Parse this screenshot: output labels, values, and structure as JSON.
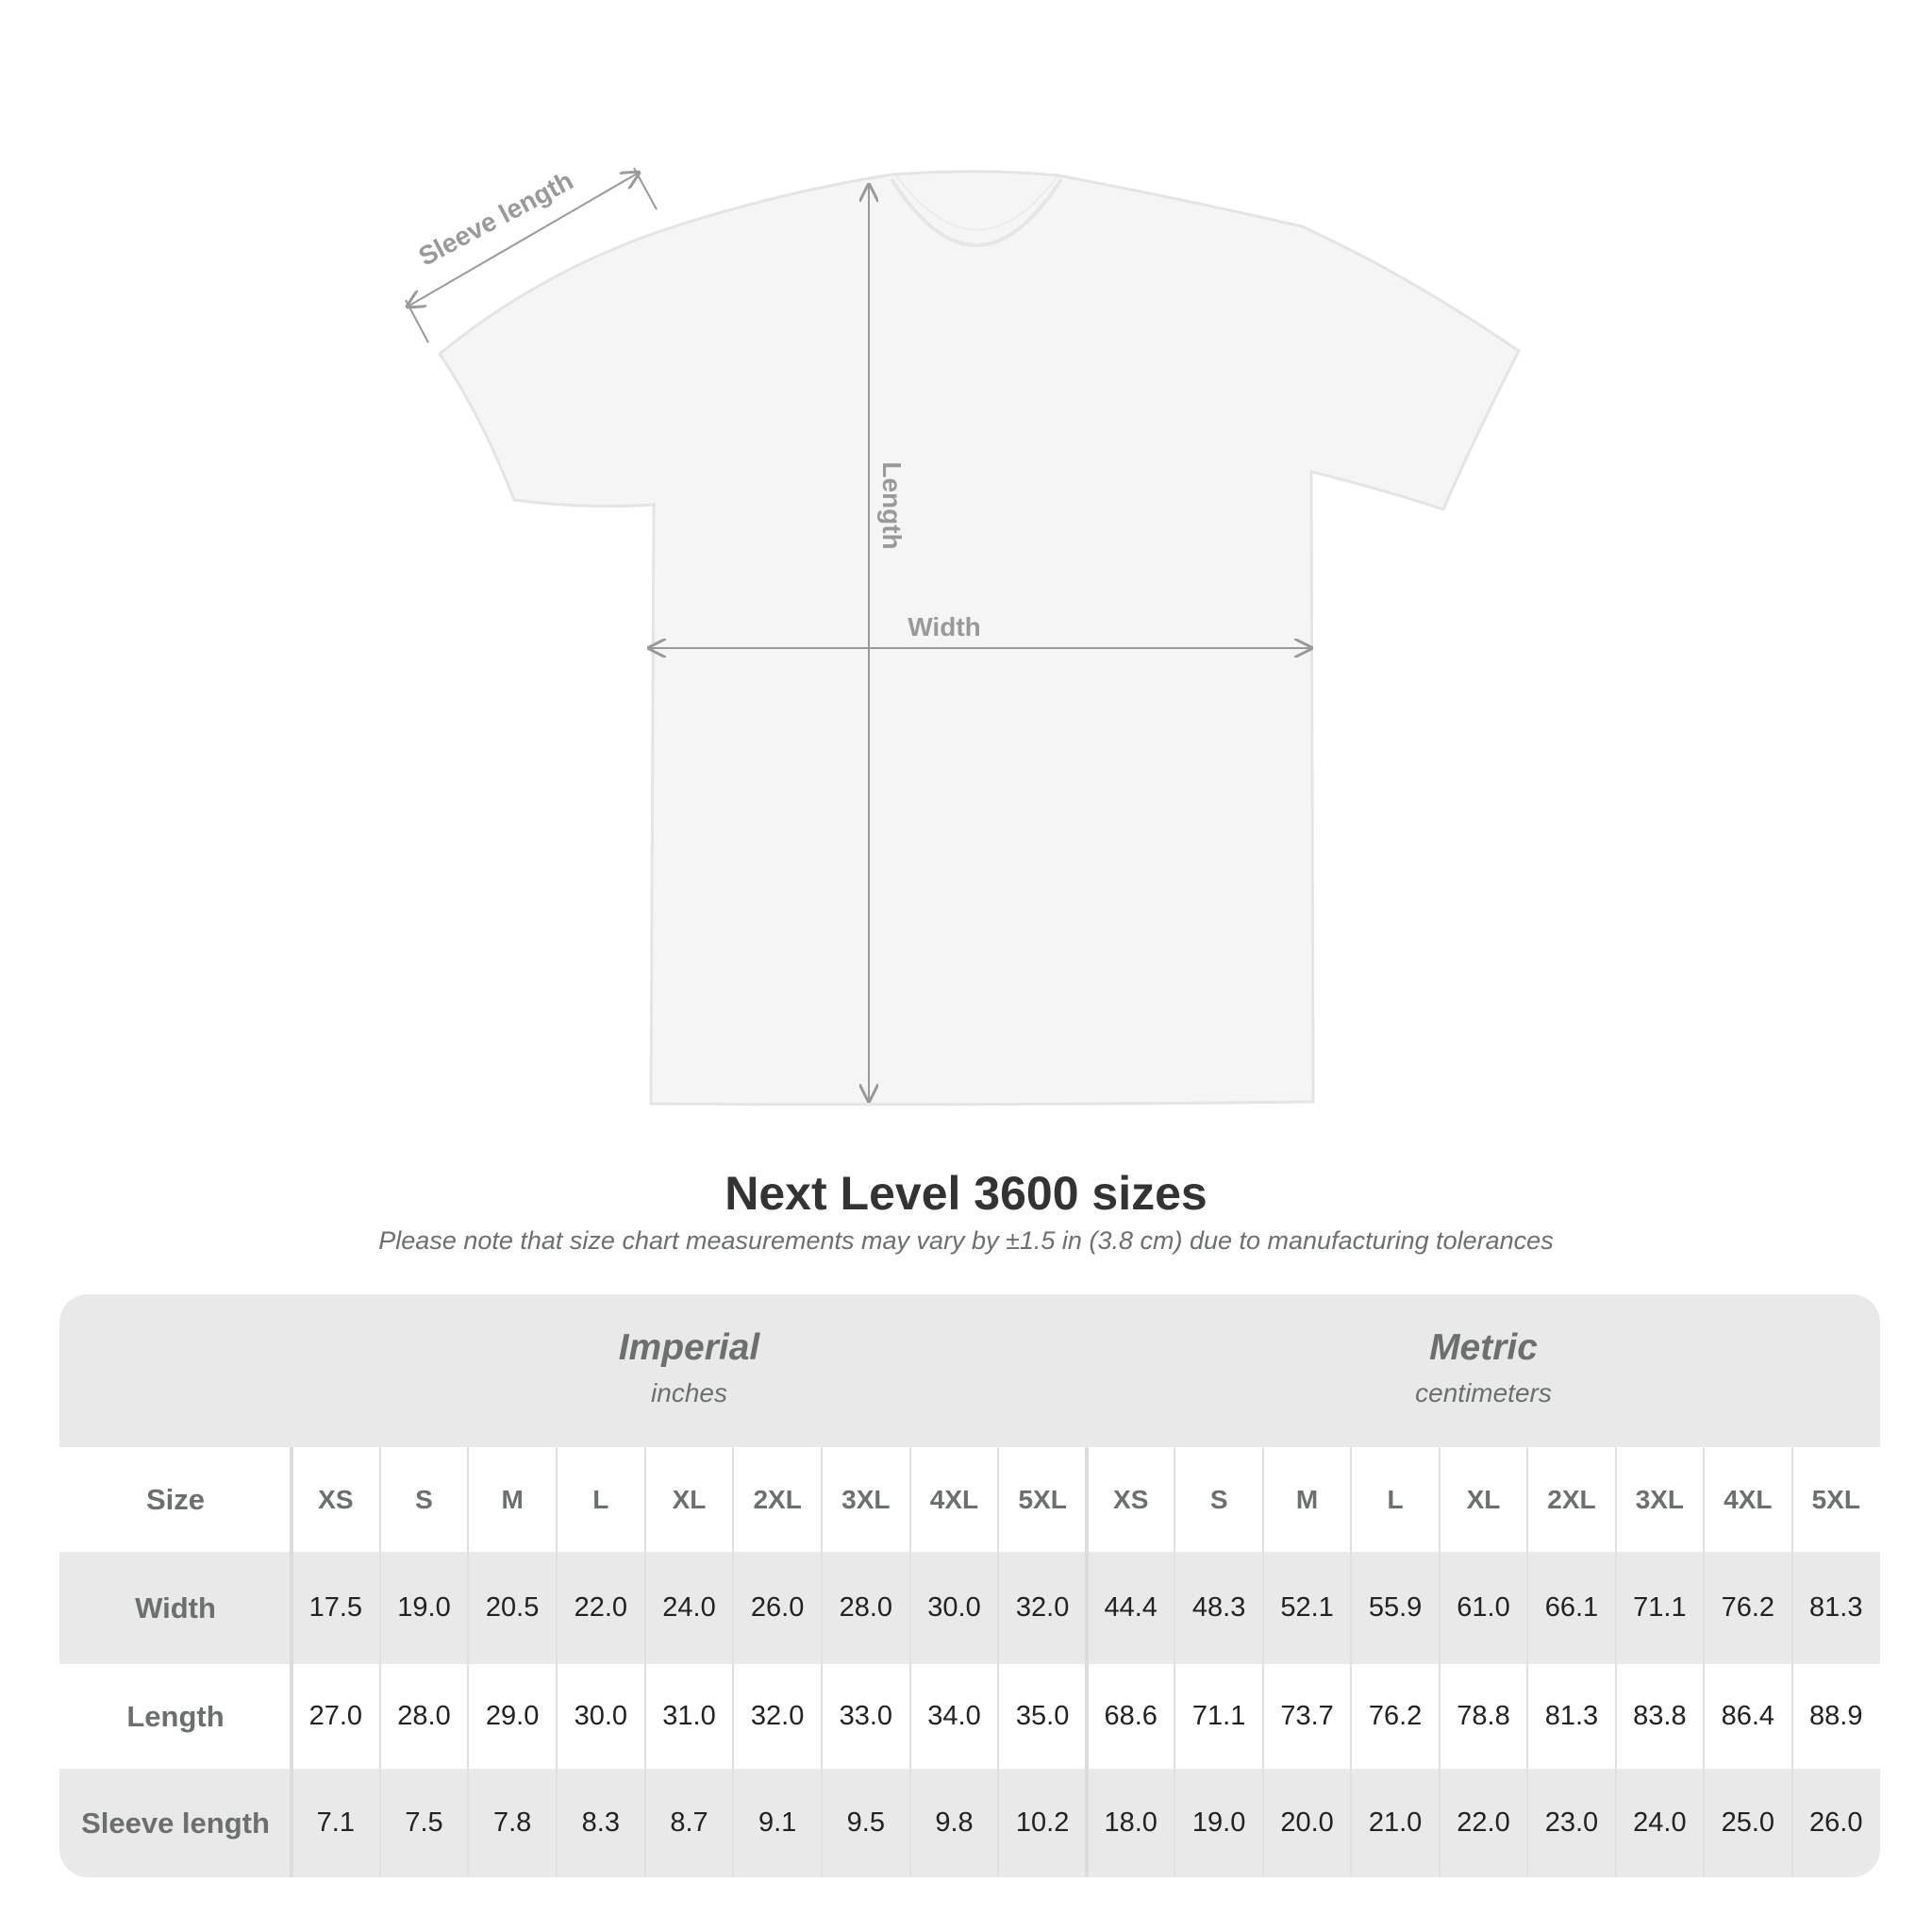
{
  "diagram": {
    "labels": {
      "sleeve": "Sleeve length",
      "length": "Length",
      "width": "Width"
    }
  },
  "title": "Next Level 3600 sizes",
  "subtitle": "Please note that size chart measurements may vary by ±1.5 in (3.8 cm) due to manufacturing tolerances",
  "table": {
    "imperial": {
      "title": "Imperial",
      "unit": "inches"
    },
    "metric": {
      "title": "Metric",
      "unit": "centimeters"
    },
    "size_label": "Size",
    "sizes": [
      "XS",
      "S",
      "M",
      "L",
      "XL",
      "2XL",
      "3XL",
      "4XL",
      "5XL"
    ],
    "rows": [
      {
        "label": "Width",
        "imperial": [
          "17.5",
          "19.0",
          "20.5",
          "22.0",
          "24.0",
          "26.0",
          "28.0",
          "30.0",
          "32.0"
        ],
        "metric": [
          "44.4",
          "48.3",
          "52.1",
          "55.9",
          "61.0",
          "66.1",
          "71.1",
          "76.2",
          "81.3"
        ]
      },
      {
        "label": "Length",
        "imperial": [
          "27.0",
          "28.0",
          "29.0",
          "30.0",
          "31.0",
          "32.0",
          "33.0",
          "34.0",
          "35.0"
        ],
        "metric": [
          "68.6",
          "71.1",
          "73.7",
          "76.2",
          "78.8",
          "81.3",
          "83.8",
          "86.4",
          "88.9"
        ]
      },
      {
        "label": "Sleeve length",
        "imperial": [
          "7.1",
          "7.5",
          "7.8",
          "8.3",
          "8.7",
          "9.1",
          "9.5",
          "9.8",
          "10.2"
        ],
        "metric": [
          "18.0",
          "19.0",
          "20.0",
          "21.0",
          "22.0",
          "23.0",
          "24.0",
          "25.0",
          "26.0"
        ]
      }
    ]
  }
}
